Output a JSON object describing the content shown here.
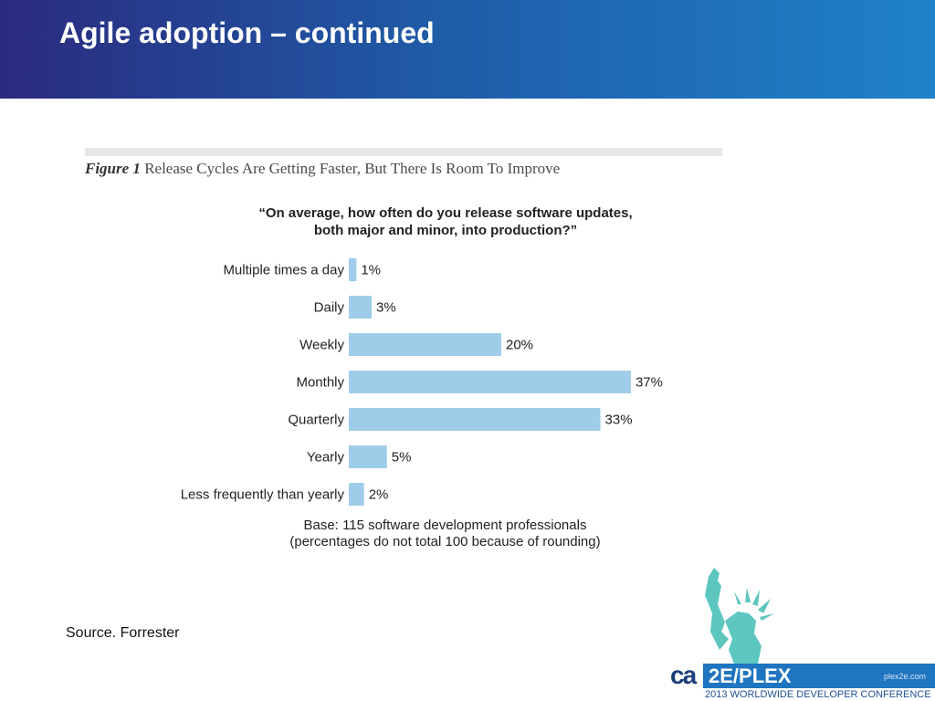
{
  "slide": {
    "title": "Agile adoption – continued",
    "source": "Source. Forrester"
  },
  "figure": {
    "number": "Figure 1",
    "caption": "Release Cycles Are Getting Faster, But There Is Room To Improve",
    "question_line1": "“On average, how often do you release software updates,",
    "question_line2": "both major and minor, into production?”",
    "base_line1": "Base: 115 software development professionals",
    "base_line2": "(percentages do not total 100 because of rounding)"
  },
  "chart_data": {
    "type": "bar",
    "orientation": "horizontal",
    "categories": [
      "Multiple times a day",
      "Daily",
      "Weekly",
      "Monthly",
      "Quarterly",
      "Yearly",
      "Less frequently than yearly"
    ],
    "values": [
      1,
      3,
      20,
      37,
      33,
      5,
      2
    ],
    "value_labels": [
      "1%",
      "3%",
      "20%",
      "37%",
      "33%",
      "5%",
      "2%"
    ],
    "unit": "%",
    "bar_color": "#9fcde9",
    "grid": false,
    "axes_visible": false
  },
  "branding": {
    "logo_text": "ca",
    "event_name": "2E/PLEX",
    "url": "plex2e.com",
    "conference": "2013 WORLDWIDE DEVELOPER CONFERENCE",
    "logo_icon": "statue-of-liberty-icon",
    "header_color_start": "#2b2a7e",
    "header_color_end": "#1f82c8"
  }
}
